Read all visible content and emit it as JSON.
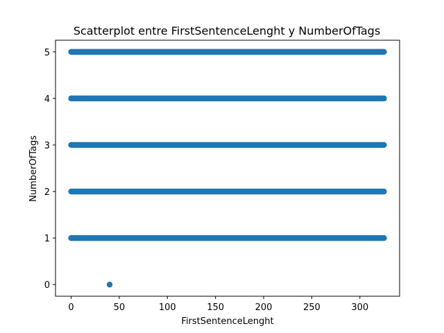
{
  "chart_data": {
    "type": "scatter",
    "title": "Scatterplot entre FirstSentenceLenght y NumberOfTags",
    "xlabel": "FirstSentenceLenght",
    "ylabel": "NumberOfTags",
    "xlim": [
      -16.25,
      341.25
    ],
    "ylim": [
      -0.25,
      5.25
    ],
    "xticks": [
      0,
      50,
      100,
      150,
      200,
      250,
      300
    ],
    "yticks": [
      0,
      1,
      2,
      3,
      4,
      5
    ],
    "grid": false,
    "legend": "none",
    "color": "#1f77b4",
    "series": [
      {
        "points": [
          {
            "x": 40,
            "y": 0
          },
          {
            "x": 0,
            "y": 1
          },
          {
            "x": 325,
            "y": 1
          },
          {
            "x": 0,
            "y": 2
          },
          {
            "x": 325,
            "y": 2
          },
          {
            "x": 0,
            "y": 3
          },
          {
            "x": 325,
            "y": 3
          },
          {
            "x": 0,
            "y": 4
          },
          {
            "x": 325,
            "y": 4
          },
          {
            "x": 0,
            "y": 5
          },
          {
            "x": 325,
            "y": 5
          }
        ],
        "bands": [
          {
            "y": 1,
            "x_from": 0,
            "x_to": 325
          },
          {
            "y": 2,
            "x_from": 0,
            "x_to": 325
          },
          {
            "y": 3,
            "x_from": 0,
            "x_to": 325
          },
          {
            "y": 4,
            "x_from": 0,
            "x_to": 325
          },
          {
            "y": 5,
            "x_from": 0,
            "x_to": 325
          }
        ]
      }
    ]
  }
}
